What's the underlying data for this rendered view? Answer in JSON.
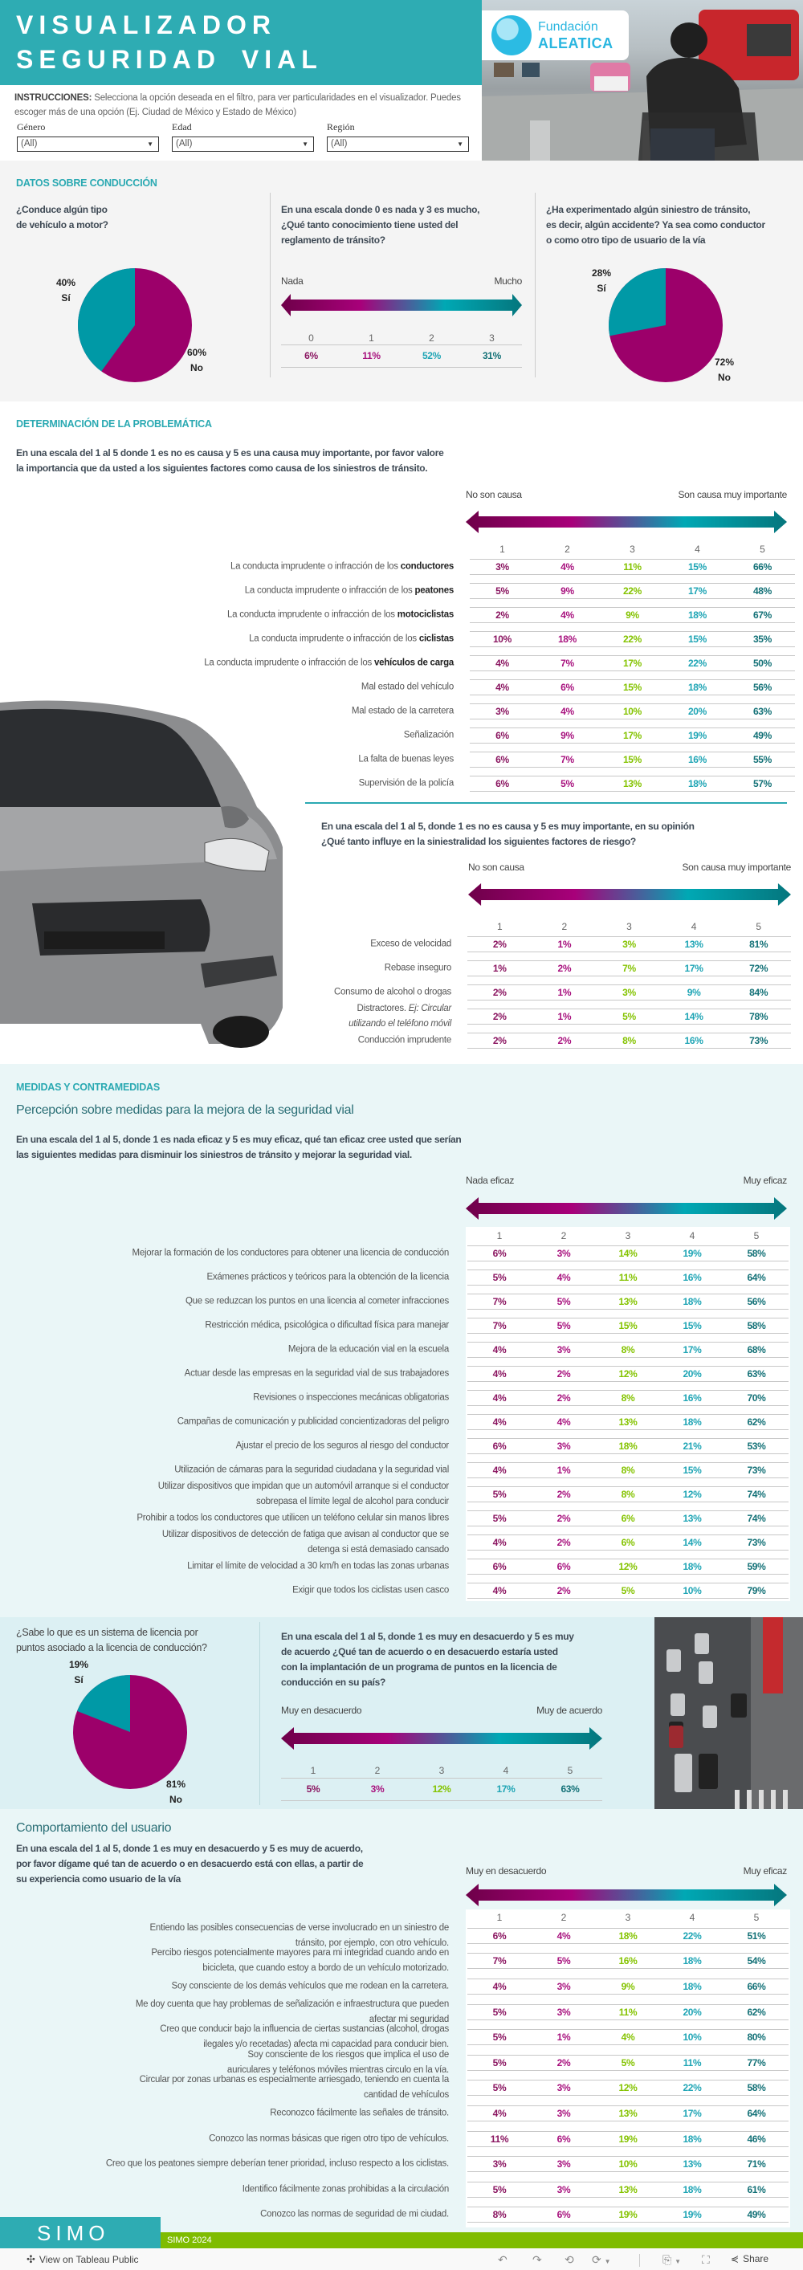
{
  "header": {
    "title_line1": "VISUALIZADOR",
    "title_line2": "SEGURIDAD VIAL",
    "logo_line1": "Fundación",
    "logo_line2": "ALEATICA",
    "instructions_bold": "INSTRUCCIONES:",
    "instructions": " Selecciona la opción deseada en el filtro, para ver particularidades en el visualizador. Puedes escoger más de una opción (Ej. Ciudad de México y Estado de México)"
  },
  "filters": [
    {
      "label": "Género",
      "value": "(All)"
    },
    {
      "label": "Edad",
      "value": "(All)"
    },
    {
      "label": "Región",
      "value": "(All)"
    }
  ],
  "colors": {
    "teal": "#2eacb3",
    "magenta": "#9c006a",
    "pie_teal": "#0099a6",
    "green": "#84c300"
  },
  "conduccion": {
    "title": "DATOS SOBRE CONDUCCIÓN",
    "q1": "¿Conduce algún tipo\nde vehículo a motor?",
    "pie1": {
      "si_pct": "40%",
      "si": "Sí",
      "no_pct": "60%",
      "no": "No"
    },
    "q2": "En una escala donde 0 es nada y 3 es mucho,\n¿Qué tanto conocimiento tiene usted del\nreglamento de tránsito?",
    "scale_left": "Nada",
    "scale_right": "Mucho",
    "table": {
      "headers": [
        "0",
        "1",
        "2",
        "3"
      ],
      "rows": [
        {
          "label": "",
          "values": [
            "6%",
            "11%",
            "52%",
            "31%"
          ]
        }
      ]
    },
    "q3": "¿Ha experimentado algún siniestro de tránsito,\nes decir, algún accidente? Ya sea como conductor\no como otro tipo de usuario de la vía",
    "pie2": {
      "si_pct": "28%",
      "si": "Sí",
      "no_pct": "72%",
      "no": "No"
    }
  },
  "problematica": {
    "title": "DETERMINACIÓN DE LA PROBLEMÁTICA",
    "q1": "En una escala del 1 al 5 donde 1 es no es causa y 5 es una causa muy importante, por favor valore\nla importancia que da usted a los siguientes factores como causa de los siniestros de tránsito.",
    "scale_left": "No son causa",
    "scale_right": "Son causa muy importante",
    "table1": {
      "headers": [
        "1",
        "2",
        "3",
        "4",
        "5"
      ],
      "rows": [
        {
          "label": "La conducta imprudente o infracción de los ",
          "bold": "conductores",
          "values": [
            "3%",
            "4%",
            "11%",
            "15%",
            "66%"
          ]
        },
        {
          "label": "La conducta imprudente o infracción de los ",
          "bold": "peatones",
          "values": [
            "5%",
            "9%",
            "22%",
            "17%",
            "48%"
          ]
        },
        {
          "label": "La conducta imprudente o infracción de los ",
          "bold": "motociclistas",
          "values": [
            "2%",
            "4%",
            "9%",
            "18%",
            "67%"
          ]
        },
        {
          "label": "La conducta imprudente o infracción de los ",
          "bold": "ciclistas",
          "values": [
            "10%",
            "18%",
            "22%",
            "15%",
            "35%"
          ]
        },
        {
          "label": "La conducta imprudente o infracción de los ",
          "bold": "vehículos de carga",
          "values": [
            "4%",
            "7%",
            "17%",
            "22%",
            "50%"
          ]
        },
        {
          "label": "Mal estado del vehículo",
          "values": [
            "4%",
            "6%",
            "15%",
            "18%",
            "56%"
          ]
        },
        {
          "label": "Mal estado de la carretera",
          "values": [
            "3%",
            "4%",
            "10%",
            "20%",
            "63%"
          ]
        },
        {
          "label": "Señalización",
          "values": [
            "6%",
            "9%",
            "17%",
            "19%",
            "49%"
          ]
        },
        {
          "label": "La falta de buenas leyes",
          "values": [
            "6%",
            "7%",
            "15%",
            "16%",
            "55%"
          ]
        },
        {
          "label": "Supervisión de la policía",
          "values": [
            "6%",
            "5%",
            "13%",
            "18%",
            "57%"
          ]
        }
      ]
    },
    "q2": "En una escala del 1 al 5, donde 1 es no es causa y 5 es muy importante, en su opinión\n¿Qué tanto influye en la siniestralidad los siguientes factores de riesgo?",
    "scale2_left": "No son causa",
    "scale2_right": "Son causa muy importante",
    "table2": {
      "headers": [
        "1",
        "2",
        "3",
        "4",
        "5"
      ],
      "rows": [
        {
          "label": "Exceso de velocidad",
          "values": [
            "2%",
            "1%",
            "3%",
            "13%",
            "81%"
          ]
        },
        {
          "label": "Rebase inseguro",
          "values": [
            "1%",
            "2%",
            "7%",
            "17%",
            "72%"
          ]
        },
        {
          "label": "Consumo de alcohol o drogas",
          "values": [
            "2%",
            "1%",
            "3%",
            "9%",
            "84%"
          ]
        },
        {
          "label": "Distractores. ",
          "italic": "Ej: Circular\nutilizando el teléfono móvil",
          "values": [
            "2%",
            "1%",
            "5%",
            "14%",
            "78%"
          ]
        },
        {
          "label": "Conducción imprudente",
          "values": [
            "2%",
            "2%",
            "8%",
            "16%",
            "73%"
          ]
        }
      ]
    }
  },
  "medidas": {
    "title": "MEDIDAS Y CONTRAMEDIDAS",
    "subtitle": "Percepción sobre medidas para la mejora de la seguridad vial",
    "q1": "En una escala del 1 al 5, donde 1 es nada eficaz y 5 es muy eficaz, qué tan eficaz cree usted que serían\nlas siguientes medidas para disminuir los siniestros de tránsito y mejorar la seguridad vial.",
    "scale_left": "Nada eficaz",
    "scale_right": "Muy eficaz",
    "table": {
      "headers": [
        "1",
        "2",
        "3",
        "4",
        "5"
      ],
      "rows": [
        {
          "label": "Mejorar la formación de los conductores para obtener una licencia de conducción",
          "values": [
            "6%",
            "3%",
            "14%",
            "19%",
            "58%"
          ]
        },
        {
          "label": "Exámenes prácticos y teóricos para la obtención de la licencia",
          "values": [
            "5%",
            "4%",
            "11%",
            "16%",
            "64%"
          ]
        },
        {
          "label": "Que se reduzcan los puntos en una licencia al cometer infracciones",
          "values": [
            "7%",
            "5%",
            "13%",
            "18%",
            "56%"
          ]
        },
        {
          "label": "Restricción médica, psicológica o dificultad física para manejar",
          "values": [
            "7%",
            "5%",
            "15%",
            "15%",
            "58%"
          ]
        },
        {
          "label": "Mejora de la educación vial en la escuela",
          "values": [
            "4%",
            "3%",
            "8%",
            "17%",
            "68%"
          ]
        },
        {
          "label": "Actuar desde las empresas en la seguridad vial de sus trabajadores",
          "values": [
            "4%",
            "2%",
            "12%",
            "20%",
            "63%"
          ]
        },
        {
          "label": "Revisiones o inspecciones mecánicas obligatorias",
          "values": [
            "4%",
            "2%",
            "8%",
            "16%",
            "70%"
          ]
        },
        {
          "label": "Campañas de comunicación y publicidad concientizadoras del peligro",
          "values": [
            "4%",
            "4%",
            "13%",
            "18%",
            "62%"
          ]
        },
        {
          "label": "Ajustar el precio de los seguros al riesgo del conductor",
          "values": [
            "6%",
            "3%",
            "18%",
            "21%",
            "53%"
          ]
        },
        {
          "label": "Utilización de cámaras para la seguridad ciudadana y la seguridad vial",
          "values": [
            "4%",
            "1%",
            "8%",
            "15%",
            "73%"
          ]
        },
        {
          "label": "Utilizar dispositivos que impidan que un automóvil arranque si el conductor\nsobrepasa el límite legal de alcohol para conducir",
          "values": [
            "5%",
            "2%",
            "8%",
            "12%",
            "74%"
          ]
        },
        {
          "label": "Prohibir a todos los conductores que utilicen un teléfono celular sin manos libres",
          "values": [
            "5%",
            "2%",
            "6%",
            "13%",
            "74%"
          ]
        },
        {
          "label": "Utilizar dispositivos de detección de fatiga que avisan al conductor que se\ndetenga si está demasiado cansado",
          "values": [
            "4%",
            "2%",
            "6%",
            "14%",
            "73%"
          ]
        },
        {
          "label": "Limitar el límite de velocidad a 30 km/h en todas las zonas urbanas",
          "values": [
            "6%",
            "6%",
            "12%",
            "18%",
            "59%"
          ]
        },
        {
          "label": "Exigir que todos los ciclistas usen casco",
          "values": [
            "4%",
            "2%",
            "5%",
            "10%",
            "79%"
          ]
        }
      ]
    }
  },
  "licencia": {
    "q1": "¿Sabe lo que es un sistema de licencia por\npuntos asociado a la licencia de conducción?",
    "pie": {
      "si_pct": "19%",
      "si": "Sí",
      "no_pct": "81%",
      "no": "No"
    },
    "q2": "En una escala del 1 al 5, donde 1 es muy en desacuerdo y 5 es muy\nde acuerdo ¿Qué tan de acuerdo o en desacuerdo estaría usted\ncon la implantación de un programa de puntos en la licencia de\nconducción en su país?",
    "scale_left": "Muy en desacuerdo",
    "scale_right": "Muy de acuerdo",
    "table": {
      "headers": [
        "1",
        "2",
        "3",
        "4",
        "5"
      ],
      "rows": [
        {
          "label": "",
          "values": [
            "5%",
            "3%",
            "12%",
            "17%",
            "63%"
          ]
        }
      ]
    }
  },
  "comportamiento": {
    "subtitle": "Comportamiento del usuario",
    "q1": "En una escala del 1 al 5, donde 1 es muy en desacuerdo y 5 es muy de acuerdo,\npor favor dígame qué tan de acuerdo o en desacuerdo está con ellas, a partir de\nsu experiencia como usuario de la vía",
    "scale_left": "Muy en desacuerdo",
    "scale_right": "Muy eficaz",
    "table": {
      "headers": [
        "1",
        "2",
        "3",
        "4",
        "5"
      ],
      "rows": [
        {
          "label": "Entiendo las posibles consecuencias de verse involucrado en un siniestro de\ntránsito, por ejemplo, con otro vehículo.",
          "values": [
            "6%",
            "4%",
            "18%",
            "22%",
            "51%"
          ]
        },
        {
          "label": "Percibo riesgos potencialmente mayores para mi integridad cuando ando en\nbicicleta, que cuando estoy a bordo de un vehículo motorizado.",
          "values": [
            "7%",
            "5%",
            "16%",
            "18%",
            "54%"
          ]
        },
        {
          "label": "Soy consciente de los demás vehículos que me rodean en la carretera.",
          "values": [
            "4%",
            "3%",
            "9%",
            "18%",
            "66%"
          ]
        },
        {
          "label": "Me doy cuenta que hay problemas de señalización e infraestructura que pueden\nafectar mi seguridad",
          "values": [
            "5%",
            "3%",
            "11%",
            "20%",
            "62%"
          ]
        },
        {
          "label": "Creo que conducir bajo la influencia de ciertas sustancias (alcohol, drogas\nilegales y/o recetadas) afecta mi capacidad para conducir bien.",
          "values": [
            "5%",
            "1%",
            "4%",
            "10%",
            "80%"
          ]
        },
        {
          "label": "Soy consciente de los riesgos que implica el uso de\nauriculares y teléfonos móviles mientras circulo en la vía.",
          "values": [
            "5%",
            "2%",
            "5%",
            "11%",
            "77%"
          ]
        },
        {
          "label": "Circular por zonas urbanas es especialmente arriesgado, teniendo en cuenta la\ncantidad de vehículos",
          "values": [
            "5%",
            "3%",
            "12%",
            "22%",
            "58%"
          ]
        },
        {
          "label": "Reconozco fácilmente las señales de tránsito.",
          "values": [
            "4%",
            "3%",
            "13%",
            "17%",
            "64%"
          ]
        },
        {
          "label": "Conozco las normas básicas que rigen otro tipo de vehículos.",
          "values": [
            "11%",
            "6%",
            "19%",
            "18%",
            "46%"
          ]
        },
        {
          "label": "Creo que los peatones siempre deberían tener prioridad, incluso respecto a los ciclistas.",
          "values": [
            "3%",
            "3%",
            "10%",
            "13%",
            "71%"
          ]
        },
        {
          "label": "Identifico fácilmente zonas prohibidas a la circulación",
          "values": [
            "5%",
            "3%",
            "13%",
            "18%",
            "61%"
          ]
        },
        {
          "label": "Conozco las normas de seguridad de mi ciudad.",
          "values": [
            "8%",
            "6%",
            "19%",
            "19%",
            "49%"
          ]
        }
      ]
    }
  },
  "footer": {
    "logo": "SIMO",
    "year_label": "SIMO 2024",
    "tableau_link": "View on Tableau Public",
    "share": "Share",
    "icons": [
      "undo-icon",
      "redo-icon",
      "revert-icon",
      "refresh-icon",
      "download-icon",
      "fullscreen-icon",
      "share-icon"
    ]
  }
}
